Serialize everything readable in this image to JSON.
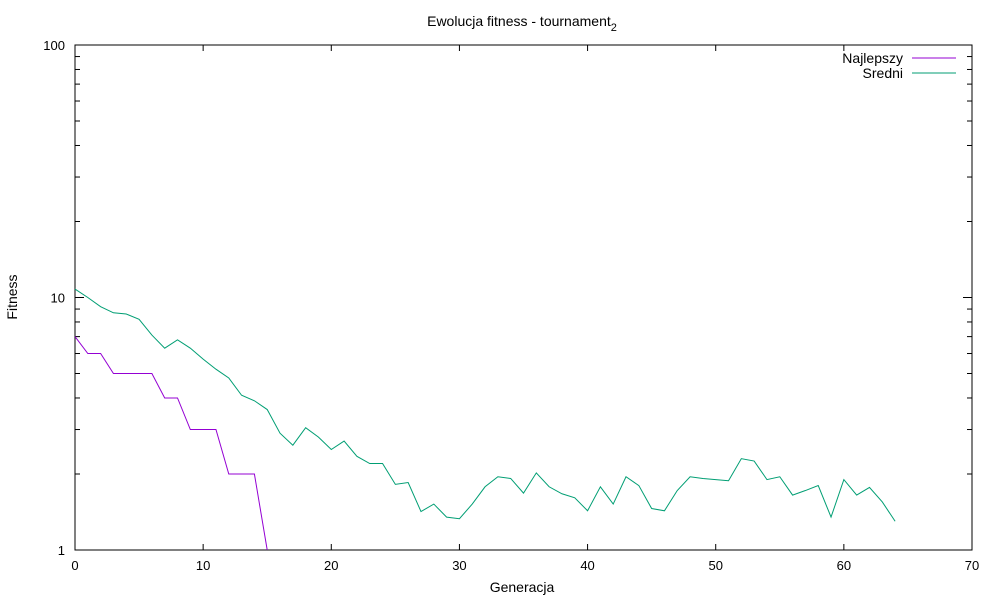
{
  "chart_data": {
    "type": "line",
    "title": "Ewolucja fitness - tournament",
    "title_subscript": "2",
    "xlabel": "Generacja",
    "ylabel": "Fitness",
    "xlim": [
      0,
      70
    ],
    "ylim": [
      1,
      100
    ],
    "yscale": "log",
    "grid": false,
    "legend_position": "top-right",
    "x_ticks": [
      0,
      10,
      20,
      30,
      40,
      50,
      60,
      70
    ],
    "x_tick_labels": [
      "0",
      "10",
      "20",
      "30",
      "40",
      "50",
      "60",
      "70"
    ],
    "y_ticks": [
      1,
      10,
      100
    ],
    "y_tick_labels": [
      "1",
      "10",
      "100"
    ],
    "series": [
      {
        "name": "Najlepszy",
        "color": "#9400d3",
        "x": [
          0,
          1,
          2,
          3,
          4,
          5,
          6,
          7,
          8,
          9,
          10,
          11,
          12,
          13,
          14,
          15
        ],
        "values": [
          7,
          6,
          6,
          5,
          5,
          5,
          5,
          4,
          4,
          3,
          3,
          3,
          2,
          2,
          2,
          1
        ]
      },
      {
        "name": "Sredni",
        "color": "#009e73",
        "x": [
          0,
          1,
          2,
          3,
          4,
          5,
          6,
          7,
          8,
          9,
          10,
          11,
          12,
          13,
          14,
          15,
          16,
          17,
          18,
          19,
          20,
          21,
          22,
          23,
          24,
          25,
          26,
          27,
          28,
          29,
          30,
          31,
          32,
          33,
          34,
          35,
          36,
          37,
          38,
          39,
          40,
          41,
          42,
          43,
          44,
          45,
          46,
          47,
          48,
          49,
          50,
          51,
          52,
          53,
          54,
          55,
          56,
          57,
          58,
          59,
          60,
          61,
          62,
          63,
          64
        ],
        "values": [
          10.8,
          10,
          9.2,
          8.7,
          8.6,
          8.2,
          7.1,
          6.3,
          6.8,
          6.3,
          5.7,
          5.2,
          4.8,
          4.1,
          3.9,
          3.6,
          2.9,
          2.6,
          3.05,
          2.8,
          2.5,
          2.7,
          2.35,
          2.2,
          2.2,
          1.82,
          1.85,
          1.42,
          1.52,
          1.35,
          1.33,
          1.52,
          1.78,
          1.95,
          1.92,
          1.68,
          2.02,
          1.78,
          1.67,
          1.61,
          1.43,
          1.78,
          1.52,
          1.95,
          1.8,
          1.46,
          1.43,
          1.72,
          1.95,
          1.92,
          1.9,
          1.88,
          2.3,
          2.25,
          1.9,
          1.95,
          1.65,
          1.72,
          1.8,
          1.35,
          1.9,
          1.65,
          1.77,
          1.55,
          1.3
        ]
      }
    ]
  }
}
